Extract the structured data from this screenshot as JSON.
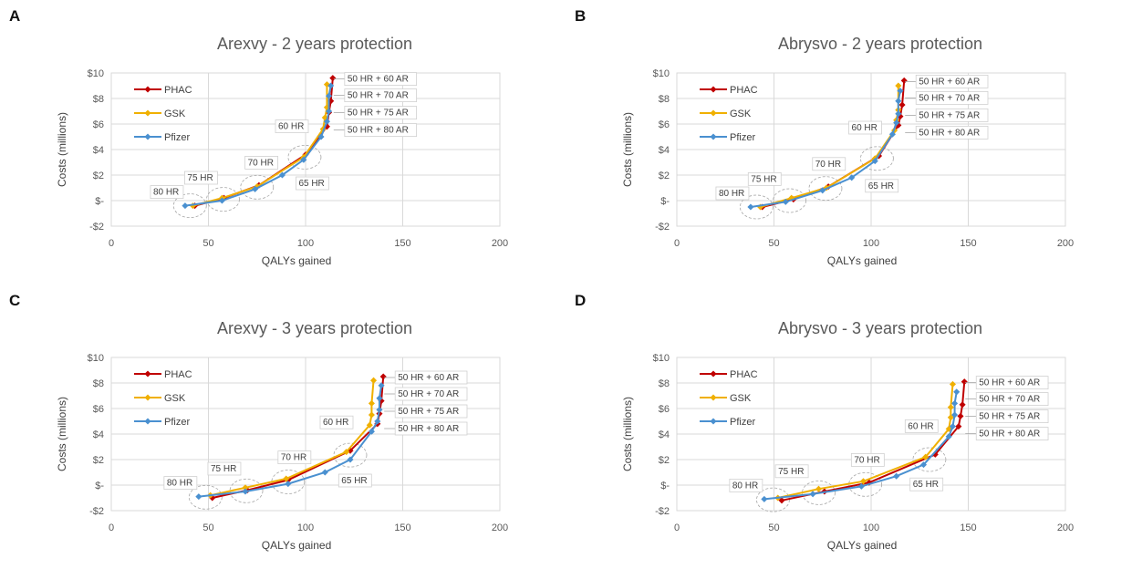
{
  "colors": {
    "PHAC": "#c00000",
    "GSK": "#f0b000",
    "Pfizer": "#4a90d0"
  },
  "chart_data": [
    {
      "panel": "A",
      "type": "line",
      "title": "Arexvy - 2 years protection",
      "xlabel": "QALYs gained",
      "ylabel": "Costs (millions)",
      "xlim": [
        0,
        200
      ],
      "ylim": [
        -2,
        10
      ],
      "xticks": [
        "0",
        "50",
        "100",
        "150",
        "200"
      ],
      "yticks": [
        "-$2",
        "$-",
        "$2",
        "$4",
        "$6",
        "$8",
        "$10"
      ],
      "series": [
        {
          "name": "PHAC",
          "color": "#c00000",
          "x": [
            43,
            58,
            76,
            100,
            111,
            112,
            113,
            114
          ],
          "y": [
            -0.4,
            0.2,
            1.2,
            3.6,
            5.8,
            6.9,
            7.8,
            9.6
          ]
        },
        {
          "name": "GSK",
          "color": "#f0b000",
          "x": [
            42,
            57,
            75,
            99,
            109,
            110,
            111,
            111
          ],
          "y": [
            -0.4,
            0.2,
            1.1,
            3.4,
            5.6,
            6.5,
            7.3,
            9.1
          ]
        },
        {
          "name": "Pfizer",
          "color": "#4a90d0",
          "x": [
            38,
            57,
            74,
            88,
            99,
            108,
            111,
            112,
            112,
            113
          ],
          "y": [
            -0.4,
            0.0,
            0.9,
            2.0,
            3.2,
            5.0,
            6.2,
            7.0,
            8.2,
            9.0
          ]
        }
      ],
      "annotations": [
        "80 HR",
        "75 HR",
        "70 HR",
        "65 HR",
        "60 HR",
        "50 HR + 60 AR",
        "50 HR + 70 AR",
        "50 HR + 75 AR",
        "50 HR + 80 AR"
      ]
    },
    {
      "panel": "B",
      "type": "line",
      "title": "Abrysvo - 2 years protection",
      "xlabel": "QALYs gained",
      "ylabel": "Costs (millions)",
      "xlim": [
        0,
        200
      ],
      "ylim": [
        -2,
        10
      ],
      "xticks": [
        "0",
        "50",
        "100",
        "150",
        "200"
      ],
      "yticks": [
        "-$2",
        "$-",
        "$2",
        "$4",
        "$6",
        "$8",
        "$10"
      ],
      "series": [
        {
          "name": "PHAC",
          "color": "#c00000",
          "x": [
            44,
            60,
            78,
            104,
            114,
            115,
            116,
            117
          ],
          "y": [
            -0.5,
            0.1,
            1.1,
            3.5,
            5.9,
            6.6,
            7.5,
            9.4
          ]
        },
        {
          "name": "GSK",
          "color": "#f0b000",
          "x": [
            43,
            59,
            77,
            102,
            112,
            113,
            114,
            114
          ],
          "y": [
            -0.5,
            0.2,
            1.0,
            3.3,
            5.5,
            6.3,
            7.1,
            9.0
          ]
        },
        {
          "name": "Pfizer",
          "color": "#4a90d0",
          "x": [
            38,
            56,
            75,
            90,
            102,
            111,
            113,
            114,
            114,
            115
          ],
          "y": [
            -0.5,
            -0.1,
            0.8,
            1.8,
            3.1,
            5.2,
            6.1,
            6.8,
            7.8,
            8.6
          ]
        }
      ],
      "annotations": [
        "80 HR",
        "75 HR",
        "70 HR",
        "65 HR",
        "60 HR",
        "50 HR + 60 AR",
        "50 HR + 70 AR",
        "50 HR + 75 AR",
        "50 HR + 80 AR"
      ]
    },
    {
      "panel": "C",
      "type": "line",
      "title": "Arexvy - 3 years protection",
      "xlabel": "QALYs gained",
      "ylabel": "Costs (millions)",
      "xlim": [
        0,
        200
      ],
      "ylim": [
        -2,
        10
      ],
      "xticks": [
        "0",
        "50",
        "100",
        "150",
        "200"
      ],
      "yticks": [
        "-$2",
        "$-",
        "$2",
        "$4",
        "$6",
        "$8",
        "$10"
      ],
      "series": [
        {
          "name": "PHAC",
          "color": "#c00000",
          "x": [
            52,
            70,
            91,
            123,
            137,
            138,
            139,
            140
          ],
          "y": [
            -1.0,
            -0.4,
            0.4,
            2.7,
            4.8,
            5.6,
            6.6,
            8.5
          ]
        },
        {
          "name": "GSK",
          "color": "#f0b000",
          "x": [
            51,
            69,
            90,
            121,
            133,
            134,
            134,
            135
          ],
          "y": [
            -0.8,
            -0.2,
            0.5,
            2.6,
            4.7,
            5.5,
            6.4,
            8.2
          ]
        },
        {
          "name": "Pfizer",
          "color": "#4a90d0",
          "x": [
            45,
            69,
            91,
            110,
            123,
            134,
            137,
            138,
            138,
            139
          ],
          "y": [
            -0.9,
            -0.5,
            0.1,
            1.0,
            2.0,
            4.2,
            5.0,
            5.9,
            6.8,
            7.8
          ]
        }
      ],
      "annotations": [
        "80 HR",
        "75 HR",
        "70 HR",
        "65 HR",
        "60 HR",
        "50 HR + 60 AR",
        "50 HR + 70 AR",
        "50 HR + 75 AR",
        "50 HR + 80 AR"
      ]
    },
    {
      "panel": "D",
      "type": "line",
      "title": "Abrysvo - 3 years protection",
      "xlabel": "QALYs gained",
      "ylabel": "Costs (millions)",
      "xlim": [
        0,
        200
      ],
      "ylim": [
        -2,
        10
      ],
      "xticks": [
        "0",
        "50",
        "100",
        "150",
        "200"
      ],
      "yticks": [
        "-$2",
        "$-",
        "$2",
        "$4",
        "$6",
        "$8",
        "$10"
      ],
      "series": [
        {
          "name": "PHAC",
          "color": "#c00000",
          "x": [
            54,
            76,
            99,
            133,
            145,
            146,
            147,
            148
          ],
          "y": [
            -1.2,
            -0.5,
            0.2,
            2.4,
            4.6,
            5.4,
            6.3,
            8.1
          ]
        },
        {
          "name": "GSK",
          "color": "#f0b000",
          "x": [
            52,
            73,
            96,
            128,
            140,
            141,
            141,
            142
          ],
          "y": [
            -1.0,
            -0.3,
            0.3,
            2.2,
            4.4,
            5.3,
            6.1,
            7.9
          ]
        },
        {
          "name": "Pfizer",
          "color": "#4a90d0",
          "x": [
            45,
            70,
            95,
            113,
            127,
            140,
            142,
            143,
            143,
            144
          ],
          "y": [
            -1.1,
            -0.7,
            -0.1,
            0.7,
            1.6,
            3.8,
            4.6,
            5.5,
            6.4,
            7.3
          ]
        }
      ],
      "annotations": [
        "80 HR",
        "75 HR",
        "70 HR",
        "65 HR",
        "60 HR",
        "50 HR + 60 AR",
        "50 HR + 70 AR",
        "50 HR + 75 AR",
        "50 HR + 80 AR"
      ]
    }
  ]
}
